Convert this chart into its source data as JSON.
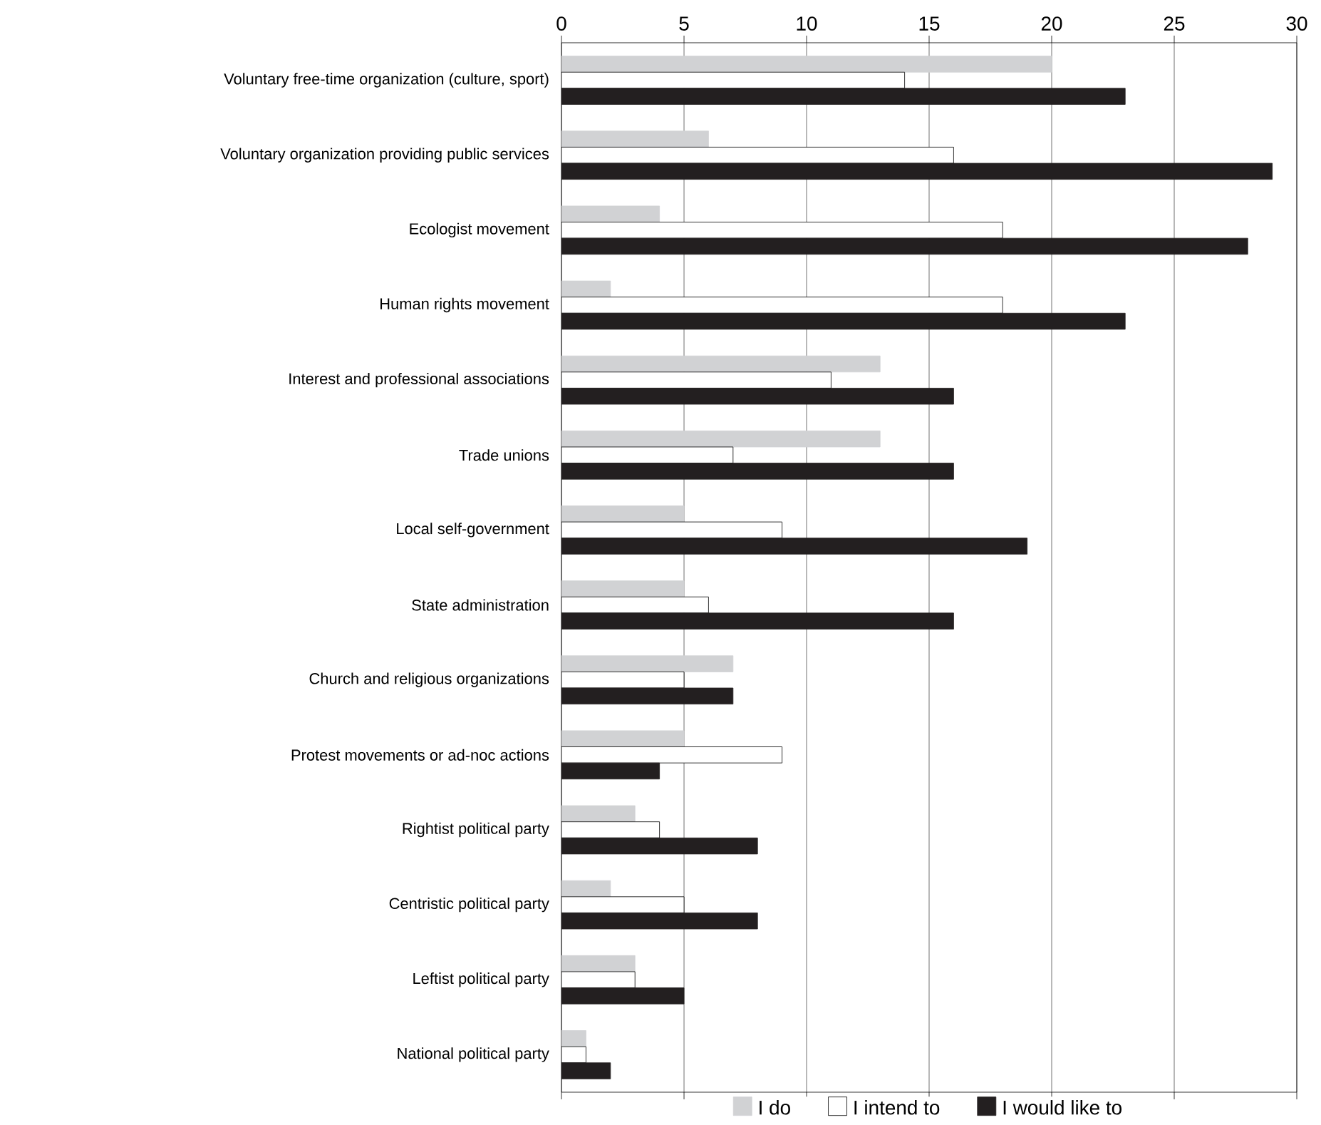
{
  "chart_data": {
    "type": "bar",
    "orientation": "horizontal",
    "categories": [
      "Voluntary free-time organization (culture, sport)",
      "Voluntary organization providing public services",
      "Ecologist movement",
      "Human rights movement",
      "Interest and professional associations",
      "Trade unions",
      "Local self-government",
      "State administration",
      "Church and religious organizations",
      "Protest movements or ad-noc actions",
      "Rightist political party",
      "Centristic political party",
      "Leftist political party",
      "National political party"
    ],
    "series": [
      {
        "name": "I do",
        "color": "#d1d2d4",
        "values": [
          20,
          6,
          4,
          2,
          13,
          13,
          5,
          5,
          7,
          5,
          3,
          2,
          3,
          1
        ]
      },
      {
        "name": "I intend to",
        "color": "#ffffff",
        "values": [
          14,
          16,
          18,
          18,
          11,
          7,
          9,
          6,
          5,
          9,
          4,
          5,
          3,
          1
        ]
      },
      {
        "name": "I would like to",
        "color": "#231f20",
        "values": [
          23,
          29,
          28,
          23,
          16,
          16,
          19,
          16,
          7,
          4,
          8,
          8,
          5,
          2
        ]
      }
    ],
    "xlim": [
      0,
      30
    ],
    "xticks": [
      0,
      5,
      10,
      15,
      20,
      25,
      30
    ],
    "grid": "x",
    "legend": "bottom"
  }
}
